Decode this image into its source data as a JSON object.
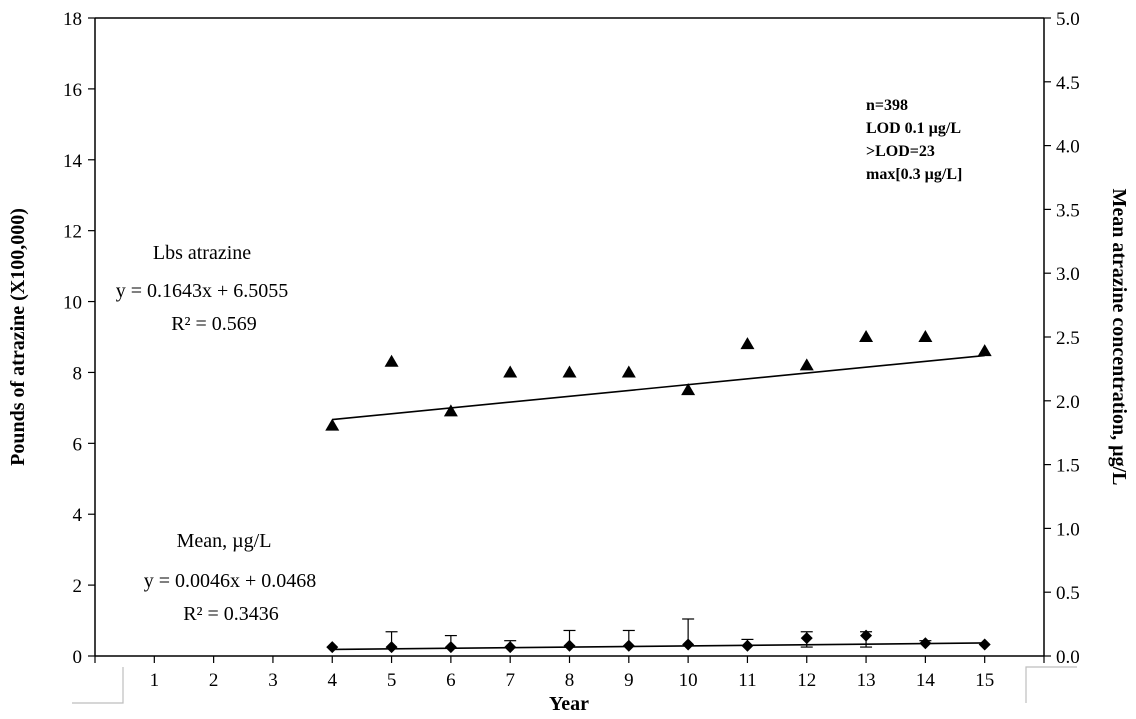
{
  "chart_data": {
    "type": "scatter",
    "xlabel": "Year",
    "ylabel_left": "Pounds of atrazine (X100,000)",
    "ylabel_right": "Mean atrazine concentration, µg/L",
    "x_ticks": [
      1,
      2,
      3,
      4,
      5,
      6,
      7,
      8,
      9,
      10,
      11,
      12,
      13,
      14,
      15
    ],
    "xlim": [
      0,
      16
    ],
    "ylim_left": [
      0,
      18
    ],
    "ylim_right": [
      0,
      5
    ],
    "y_ticks_left": [
      "0",
      "2",
      "4",
      "6",
      "8",
      "10",
      "12",
      "14",
      "16",
      "18"
    ],
    "y_ticks_right": [
      "0.0",
      "0.5",
      "1.0",
      "1.5",
      "2.0",
      "2.5",
      "3.0",
      "3.5",
      "4.0",
      "4.5",
      "5.0"
    ],
    "grid": false,
    "series": [
      {
        "marker": "triangle",
        "axis": "left",
        "x": [
          4,
          5,
          6,
          7,
          8,
          9,
          10,
          11,
          12,
          13,
          14,
          15
        ],
        "y": [
          6.5,
          8.3,
          6.9,
          8.0,
          8.0,
          8.0,
          7.5,
          8.8,
          8.2,
          9.0,
          9.0,
          8.6
        ],
        "trendline": {
          "slope": 0.1643,
          "intercept": 6.5055,
          "x_range": [
            4,
            15
          ]
        }
      },
      {
        "marker": "diamond",
        "axis": "right",
        "x": [
          4,
          5,
          6,
          7,
          8,
          9,
          10,
          11,
          12,
          13,
          14,
          15
        ],
        "y": [
          0.07,
          0.07,
          0.07,
          0.07,
          0.08,
          0.08,
          0.09,
          0.08,
          0.14,
          0.16,
          0.1,
          0.09
        ],
        "error_upper": [
          0.0,
          0.12,
          0.09,
          0.05,
          0.12,
          0.12,
          0.2,
          0.05,
          0.05,
          0.03,
          0.02,
          0.0
        ],
        "error_lower": [
          0.0,
          0.0,
          0.0,
          0.0,
          0.0,
          0.0,
          0.0,
          0.0,
          0.07,
          0.09,
          0.0,
          0.0
        ],
        "trendline": {
          "slope": 0.0046,
          "intercept": 0.0468,
          "x_range": [
            4,
            15
          ]
        }
      }
    ],
    "annotations": {
      "lbs_title": "Lbs atrazine",
      "lbs_equation": "y = 0.1643x + 6.5055",
      "lbs_r2": "R² = 0.569",
      "mean_title": "Mean, µg/L",
      "mean_equation": "y = 0.0046x + 0.0468",
      "mean_r2": "R² = 0.3436",
      "stats": [
        "n=398",
        "LOD 0.1 µg/L",
        ">LOD=23",
        "max[0.3 µg/L]"
      ]
    }
  }
}
